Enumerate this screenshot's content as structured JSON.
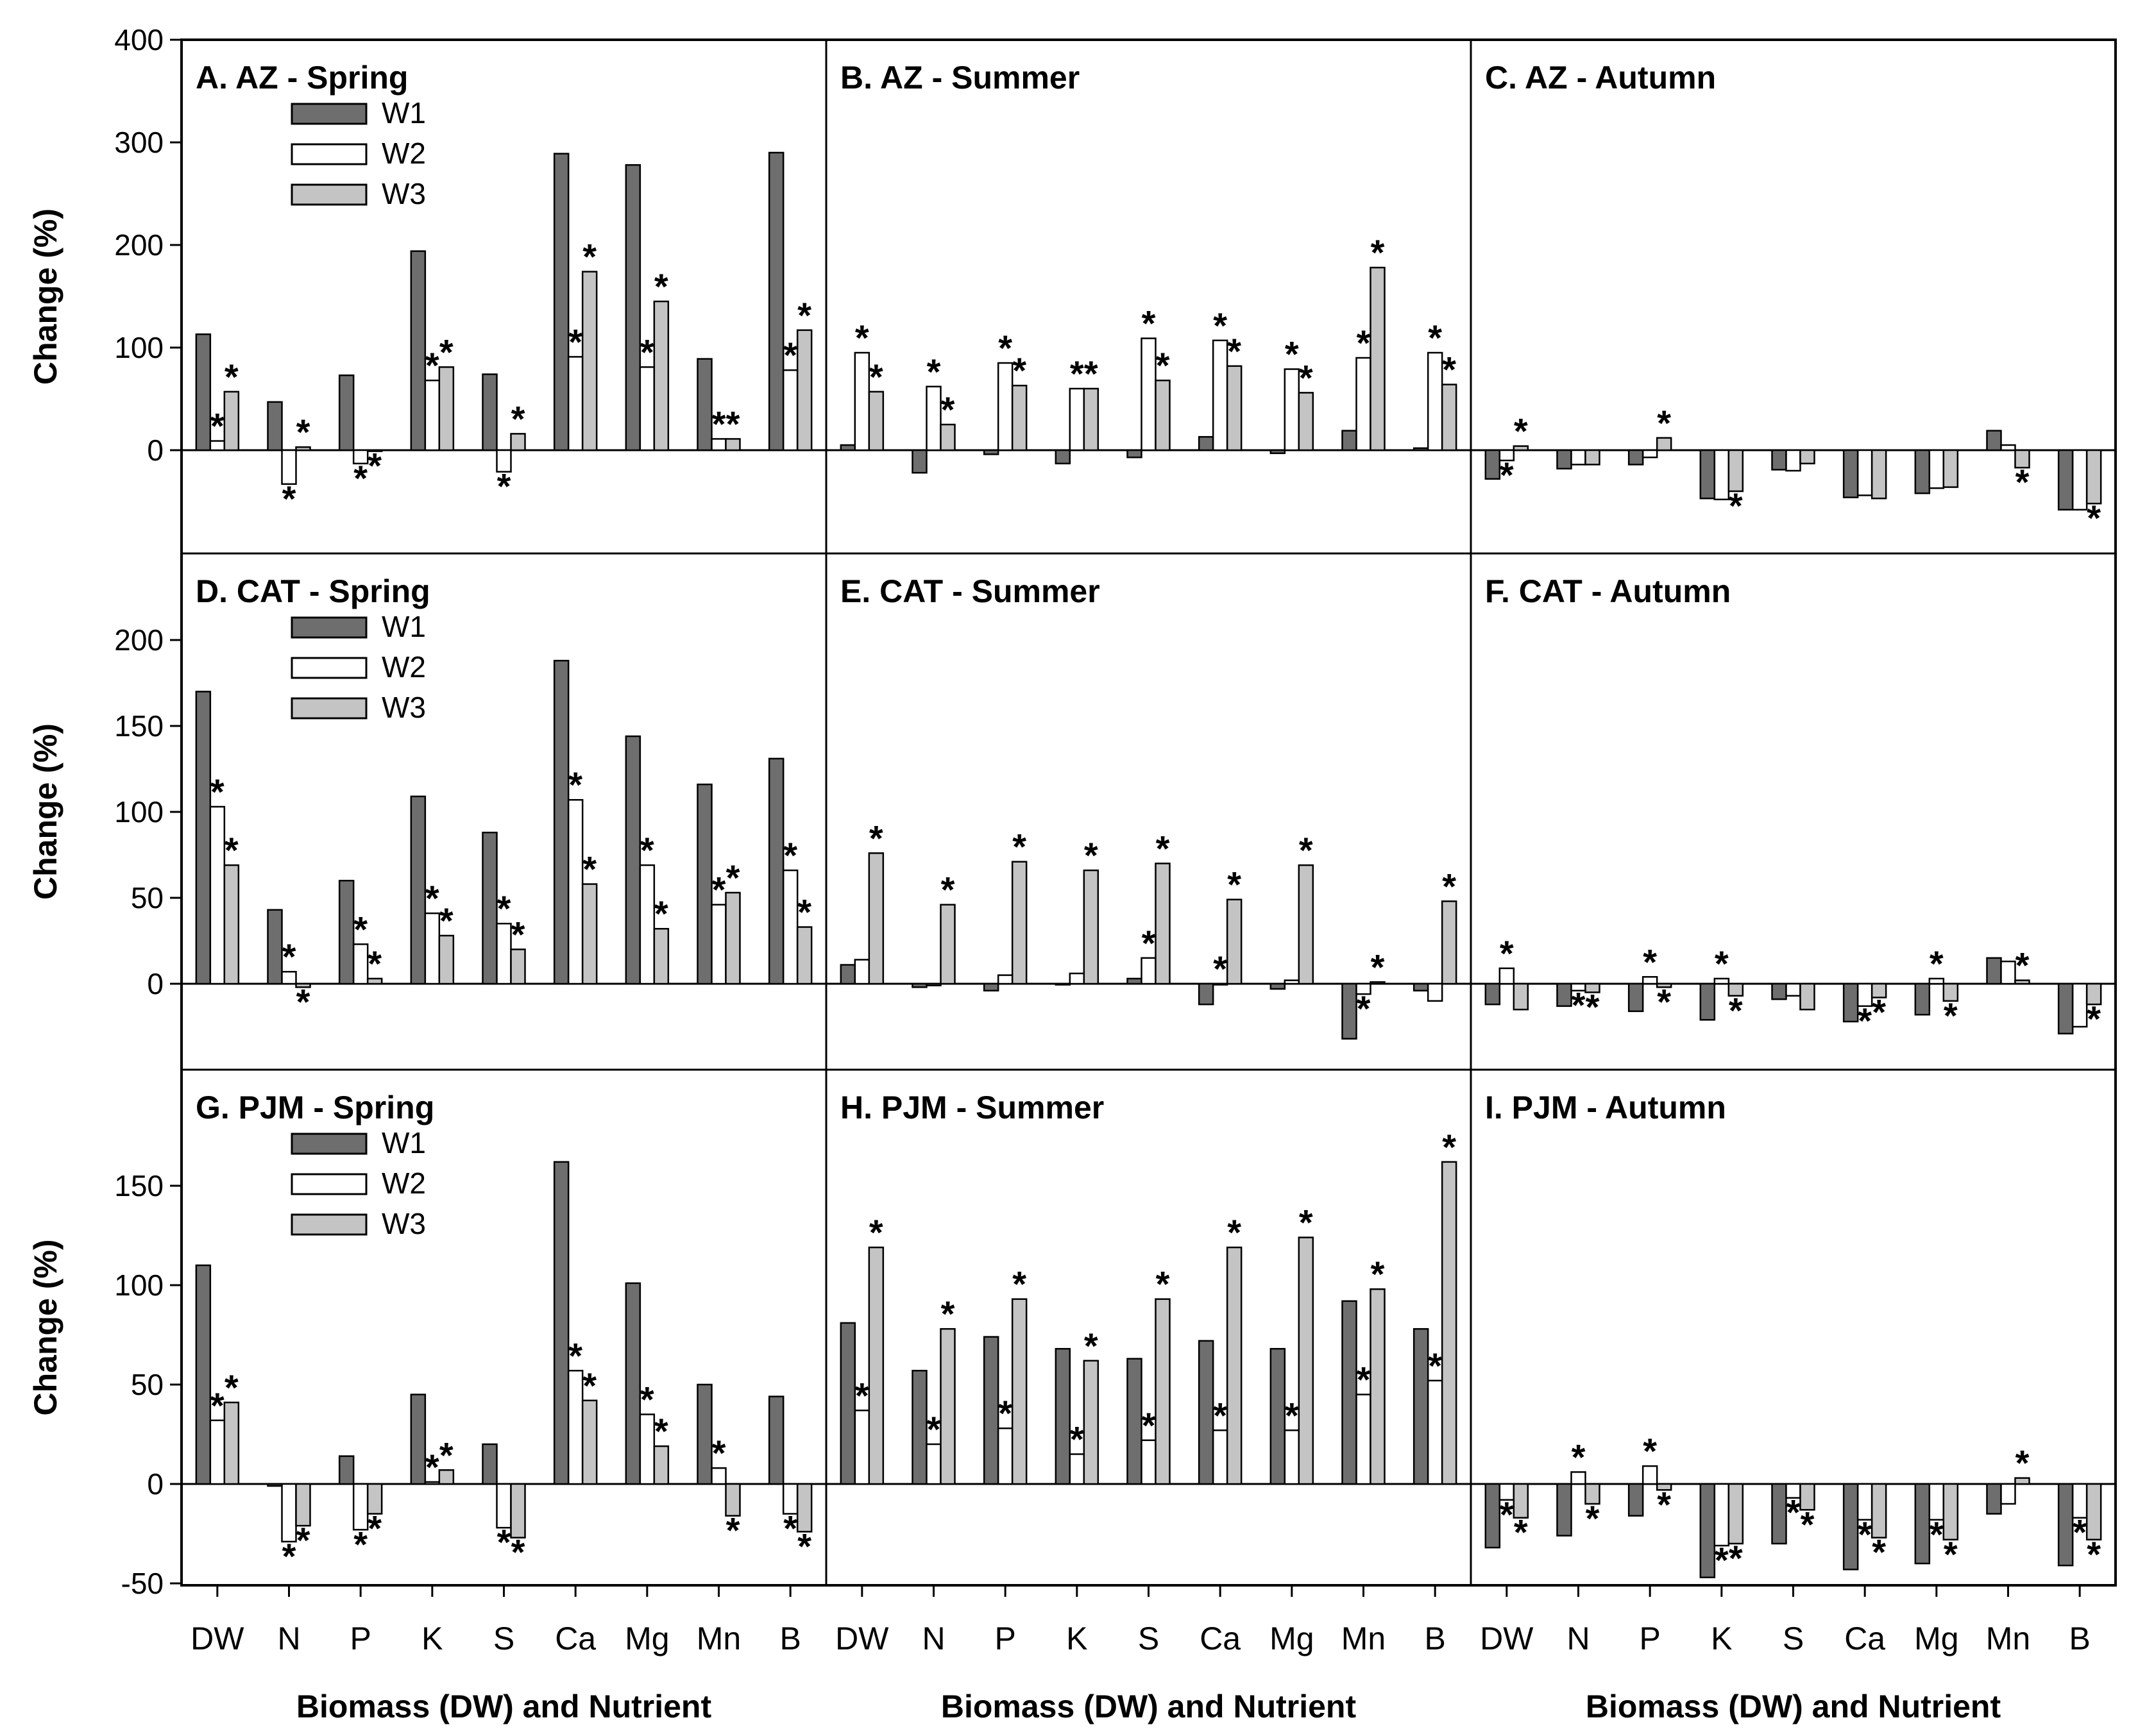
{
  "chart_data": {
    "type": "bar",
    "categories": [
      "DW",
      "N",
      "P",
      "K",
      "S",
      "Ca",
      "Mg",
      "Mn",
      "B"
    ],
    "series_names": [
      "W1",
      "W2",
      "W3"
    ],
    "colors": {
      "W1": "#6e6e6e",
      "W2": "#ffffff",
      "W3": "#c4c4c4"
    },
    "xlabel": "Biomass (DW) and Nutrient",
    "ylabel": "Change (%)",
    "rows": [
      {
        "ylim": [
          -100,
          400
        ],
        "ticks": [
          "0",
          "100",
          "200",
          "300",
          "400"
        ],
        "tick_values": [
          0,
          100,
          200,
          300,
          400
        ]
      },
      {
        "ylim": [
          -50,
          250
        ],
        "ticks": [
          "0",
          "50",
          "100",
          "150",
          "200"
        ],
        "tick_values": [
          0,
          50,
          100,
          150,
          200
        ]
      },
      {
        "ylim": [
          -50,
          200
        ],
        "ticks": [
          "-50",
          "0",
          "50",
          "100",
          "150"
        ],
        "tick_values": [
          -50,
          0,
          50,
          100,
          150
        ]
      }
    ],
    "panels": [
      {
        "title": "A. AZ - Spring",
        "row": 0,
        "col": 0,
        "legend": true,
        "series": [
          {
            "name": "W1",
            "values": [
              113,
              47,
              73,
              194,
              74,
              289,
              278,
              89,
              290
            ]
          },
          {
            "name": "W2",
            "values": [
              9,
              -33,
              -13,
              68,
              -21,
              91,
              81,
              11,
              78
            ]
          },
          {
            "name": "W3",
            "values": [
              57,
              3,
              -1,
              81,
              16,
              174,
              145,
              11,
              117
            ]
          }
        ],
        "stars": [
          [
            false,
            false,
            false,
            false,
            false,
            false,
            false,
            false,
            false
          ],
          [
            true,
            true,
            true,
            true,
            true,
            true,
            true,
            true,
            true
          ],
          [
            true,
            true,
            true,
            true,
            true,
            true,
            true,
            true,
            true
          ]
        ]
      },
      {
        "title": "B. AZ - Summer",
        "row": 0,
        "col": 1,
        "legend": false,
        "series": [
          {
            "name": "W1",
            "values": [
              5,
              -22,
              -4,
              -13,
              -7,
              13,
              -3,
              19,
              2
            ]
          },
          {
            "name": "W2",
            "values": [
              95,
              62,
              85,
              60,
              109,
              107,
              79,
              90,
              95
            ]
          },
          {
            "name": "W3",
            "values": [
              57,
              25,
              63,
              60,
              68,
              82,
              56,
              178,
              64
            ]
          }
        ],
        "stars": [
          [
            false,
            false,
            false,
            false,
            false,
            false,
            false,
            false,
            false
          ],
          [
            true,
            true,
            true,
            true,
            true,
            true,
            true,
            true,
            true
          ],
          [
            true,
            true,
            true,
            true,
            true,
            true,
            true,
            true,
            true
          ]
        ]
      },
      {
        "title": "C. AZ - Autumn",
        "row": 0,
        "col": 2,
        "legend": false,
        "series": [
          {
            "name": "W1",
            "values": [
              -28,
              -18,
              -14,
              -47,
              -19,
              -46,
              -42,
              19,
              -58
            ]
          },
          {
            "name": "W2",
            "values": [
              -10,
              -14,
              -7,
              -48,
              -20,
              -44,
              -37,
              5,
              -58
            ]
          },
          {
            "name": "W3",
            "values": [
              4,
              -14,
              12,
              -40,
              -13,
              -47,
              -36,
              -17,
              -52
            ]
          }
        ],
        "stars": [
          [
            false,
            false,
            false,
            false,
            false,
            false,
            false,
            false,
            false
          ],
          [
            true,
            false,
            false,
            false,
            false,
            false,
            false,
            false,
            false
          ],
          [
            true,
            false,
            true,
            true,
            false,
            false,
            false,
            true,
            true
          ]
        ]
      },
      {
        "title": "D. CAT - Spring",
        "row": 1,
        "col": 0,
        "legend": true,
        "series": [
          {
            "name": "W1",
            "values": [
              170,
              43,
              60,
              109,
              88,
              188,
              144,
              116,
              131
            ]
          },
          {
            "name": "W2",
            "values": [
              103,
              7,
              23,
              41,
              35,
              107,
              69,
              46,
              66
            ]
          },
          {
            "name": "W3",
            "values": [
              69,
              -2,
              3,
              28,
              20,
              58,
              32,
              53,
              33
            ]
          }
        ],
        "stars": [
          [
            false,
            false,
            false,
            false,
            false,
            false,
            false,
            false,
            false
          ],
          [
            true,
            true,
            true,
            true,
            true,
            true,
            true,
            true,
            true
          ],
          [
            true,
            true,
            true,
            true,
            true,
            true,
            true,
            true,
            true
          ]
        ]
      },
      {
        "title": "E. CAT - Summer",
        "row": 1,
        "col": 1,
        "legend": false,
        "series": [
          {
            "name": "W1",
            "values": [
              11,
              -2,
              -4,
              0,
              3,
              -12,
              -3,
              -32,
              -4
            ]
          },
          {
            "name": "W2",
            "values": [
              14,
              -1,
              5,
              6,
              15,
              0,
              2,
              -6,
              -10
            ]
          },
          {
            "name": "W3",
            "values": [
              76,
              46,
              71,
              66,
              70,
              49,
              69,
              1,
              48
            ]
          }
        ],
        "stars": [
          [
            false,
            false,
            false,
            false,
            false,
            false,
            false,
            false,
            false
          ],
          [
            false,
            false,
            false,
            false,
            true,
            true,
            false,
            true,
            false
          ],
          [
            true,
            true,
            true,
            true,
            true,
            true,
            true,
            true,
            true
          ]
        ]
      },
      {
        "title": "F. CAT - Autumn",
        "row": 1,
        "col": 2,
        "legend": false,
        "series": [
          {
            "name": "W1",
            "values": [
              -12,
              -13,
              -16,
              -21,
              -9,
              -22,
              -18,
              15,
              -29
            ]
          },
          {
            "name": "W2",
            "values": [
              9,
              -4,
              4,
              3,
              -7,
              -13,
              3,
              13,
              -25
            ]
          },
          {
            "name": "W3",
            "values": [
              -15,
              -5,
              -2,
              -7,
              -15,
              -8,
              -10,
              2,
              -12
            ]
          }
        ],
        "stars": [
          [
            false,
            false,
            false,
            false,
            false,
            false,
            false,
            false,
            false
          ],
          [
            true,
            true,
            true,
            true,
            false,
            true,
            true,
            false,
            false
          ],
          [
            false,
            true,
            true,
            true,
            false,
            true,
            true,
            true,
            true
          ]
        ]
      },
      {
        "title": "G. PJM - Spring",
        "row": 2,
        "col": 0,
        "legend": true,
        "series": [
          {
            "name": "W1",
            "values": [
              110,
              -1,
              14,
              45,
              20,
              162,
              101,
              50,
              44
            ]
          },
          {
            "name": "W2",
            "values": [
              32,
              -29,
              -23,
              1,
              -22,
              57,
              35,
              8,
              -15
            ]
          },
          {
            "name": "W3",
            "values": [
              41,
              -21,
              -15,
              7,
              -27,
              42,
              19,
              -16,
              -24
            ]
          }
        ],
        "stars": [
          [
            false,
            false,
            false,
            false,
            false,
            false,
            false,
            false,
            false
          ],
          [
            true,
            true,
            true,
            true,
            true,
            true,
            true,
            true,
            true
          ],
          [
            true,
            true,
            true,
            true,
            true,
            true,
            true,
            true,
            true
          ]
        ]
      },
      {
        "title": "H. PJM - Summer",
        "row": 2,
        "col": 1,
        "legend": false,
        "series": [
          {
            "name": "W1",
            "values": [
              81,
              57,
              74,
              68,
              63,
              72,
              68,
              92,
              78
            ]
          },
          {
            "name": "W2",
            "values": [
              37,
              20,
              28,
              15,
              22,
              27,
              27,
              45,
              52
            ]
          },
          {
            "name": "W3",
            "values": [
              119,
              78,
              93,
              62,
              93,
              119,
              124,
              98,
              162
            ]
          }
        ],
        "stars": [
          [
            false,
            false,
            false,
            false,
            false,
            false,
            false,
            false,
            false
          ],
          [
            true,
            true,
            true,
            true,
            true,
            true,
            true,
            true,
            true
          ],
          [
            true,
            true,
            true,
            true,
            true,
            true,
            true,
            true,
            true
          ]
        ]
      },
      {
        "title": "I. PJM - Autumn",
        "row": 2,
        "col": 2,
        "legend": false,
        "series": [
          {
            "name": "W1",
            "values": [
              -32,
              -26,
              -16,
              -47,
              -30,
              -43,
              -40,
              -15,
              -41
            ]
          },
          {
            "name": "W2",
            "values": [
              -8,
              6,
              9,
              -31,
              -7,
              -18,
              -18,
              -10,
              -17
            ]
          },
          {
            "name": "W3",
            "values": [
              -17,
              -10,
              -3,
              -30,
              -13,
              -27,
              -28,
              3,
              -28
            ]
          }
        ],
        "stars": [
          [
            false,
            false,
            false,
            false,
            false,
            false,
            false,
            false,
            false
          ],
          [
            true,
            true,
            true,
            true,
            true,
            true,
            true,
            false,
            true
          ],
          [
            true,
            true,
            true,
            true,
            true,
            true,
            true,
            true,
            true
          ]
        ]
      }
    ]
  }
}
